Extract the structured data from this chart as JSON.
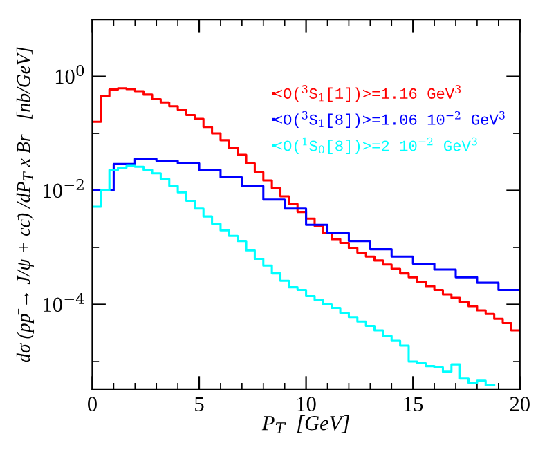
{
  "chart_data": {
    "type": "step",
    "xlabel": "P$_{T}$  [GeV]",
    "ylabel": "dσ (pp̄ → J/ψ + cc̄) /dP$_{T}$ x Br   [nb/GeV]",
    "log": "y",
    "xlim": [
      0,
      20
    ],
    "ylim": [
      3.2e-06,
      10
    ],
    "xticks": [
      0,
      {
        "value": 1,
        "label": null
      },
      {
        "value": 2,
        "label": null
      },
      {
        "value": 3,
        "label": null
      },
      {
        "value": 4,
        "label": null
      },
      5,
      {
        "value": 6,
        "label": null
      },
      {
        "value": 7,
        "label": null
      },
      {
        "value": 8,
        "label": null
      },
      {
        "value": 9,
        "label": null
      },
      10,
      {
        "value": 11,
        "label": null
      },
      {
        "value": 12,
        "label": null
      },
      {
        "value": 13,
        "label": null
      },
      {
        "value": 14,
        "label": null
      },
      15,
      {
        "value": 16,
        "label": null
      },
      {
        "value": 17,
        "label": null
      },
      {
        "value": 18,
        "label": null
      },
      {
        "value": 19,
        "label": null
      },
      20
    ],
    "yticks": [
      {
        "value": 1e-05,
        "label": null
      },
      {
        "value": 0.0001,
        "label": "10$^{−4}$"
      },
      {
        "value": 0.001,
        "label": null
      },
      {
        "value": 0.01,
        "label": "10$^{−2}$"
      },
      {
        "value": 0.1,
        "label": null
      },
      {
        "value": 1,
        "label": "10$^{0}$"
      }
    ],
    "legend": "top right",
    "series": [
      {
        "name": "<O($^{3}$S$_{1}$[1])>=1.16 GeV$^{3}$",
        "color": "#ff0000",
        "x": [
          0,
          0.4,
          0.8,
          1.2,
          1.6,
          2,
          2.4,
          2.8,
          3.2,
          3.6,
          4,
          4.4,
          4.8,
          5.2,
          5.6,
          6,
          6.4,
          6.8,
          7.2,
          7.6,
          8,
          8.4,
          8.8,
          9.2,
          9.6,
          10,
          10.4,
          10.8,
          11.2,
          11.6,
          12,
          12.4,
          12.8,
          13.2,
          13.6,
          14,
          14.4,
          14.8,
          15.2,
          15.6,
          16,
          16.4,
          16.8,
          17.2,
          17.6,
          18,
          18.4,
          18.8,
          19.2,
          19.6,
          20
        ],
        "values": [
          0.16,
          0.45,
          0.59,
          0.62,
          0.6,
          0.55,
          0.48,
          0.4,
          0.35,
          0.3,
          0.26,
          0.21,
          0.18,
          0.13,
          0.1,
          0.076,
          0.056,
          0.042,
          0.03,
          0.021,
          0.015,
          0.011,
          0.0079,
          0.0058,
          0.0042,
          0.0032,
          0.0024,
          0.0018,
          0.0014,
          0.0012,
          0.00098,
          0.00081,
          0.00069,
          0.00059,
          0.0005,
          0.00042,
          0.00035,
          0.0003,
          0.00025,
          0.00021,
          0.00018,
          0.00015,
          0.00013,
          0.00011,
          9.3e-05,
          7.9e-05,
          6.8e-05,
          5.6e-05,
          4.7e-05,
          3.5e-05,
          3.5e-05
        ]
      },
      {
        "name": "<O($^{3}$S$_{1}$[8])>=1.06 10$^{−2}$ GeV$^{3}$",
        "color": "#0000ff",
        "x": [
          0,
          1,
          2,
          3,
          4,
          5,
          6,
          7,
          8,
          9,
          10,
          11,
          12,
          13,
          14,
          15,
          16,
          17,
          18,
          19,
          20
        ],
        "values": [
          0.01,
          0.029,
          0.036,
          0.033,
          0.03,
          0.023,
          0.017,
          0.012,
          0.0069,
          0.0048,
          0.0025,
          0.0018,
          0.0013,
          0.00093,
          0.00069,
          0.00052,
          0.00041,
          0.0003,
          0.00024,
          0.00018,
          0.00018
        ]
      },
      {
        "name": "<O($^{1}$S$_{0}$[8])>=2 10$^{−2}$ GeV$^{3}$",
        "color": "#00ffff",
        "x": [
          0,
          0.4,
          0.8,
          1.2,
          1.6,
          2,
          2.4,
          2.8,
          3.2,
          3.6,
          4,
          4.4,
          4.8,
          5.2,
          5.6,
          6,
          6.4,
          6.8,
          7.2,
          7.6,
          8,
          8.4,
          8.8,
          9.2,
          9.6,
          10,
          10.4,
          10.8,
          11.2,
          11.6,
          12,
          12.4,
          12.8,
          13.2,
          13.6,
          14,
          14.4,
          14.8,
          15.2,
          15.6,
          16,
          16.4,
          16.8,
          17.2,
          17.6,
          18,
          18.4,
          18.8
        ],
        "values": [
          0.0052,
          0.01,
          0.023,
          0.025,
          0.027,
          0.026,
          0.023,
          0.02,
          0.016,
          0.012,
          0.0093,
          0.0066,
          0.0048,
          0.0035,
          0.0026,
          0.002,
          0.0016,
          0.0013,
          0.00089,
          0.00063,
          0.00048,
          0.00035,
          0.00026,
          0.0002,
          0.00018,
          0.00014,
          0.00012,
          0.0001,
          8.7e-05,
          7.1e-05,
          6e-05,
          5e-05,
          4.2e-05,
          3.5e-05,
          2.8e-05,
          2.3e-05,
          1.9e-05,
          1e-05,
          9.3e-06,
          8.3e-06,
          7.9e-06,
          6.6e-06,
          8.9e-06,
          5e-06,
          4.2e-06,
          4.6e-06,
          3.8e-06,
          3.8e-06
        ]
      }
    ]
  }
}
